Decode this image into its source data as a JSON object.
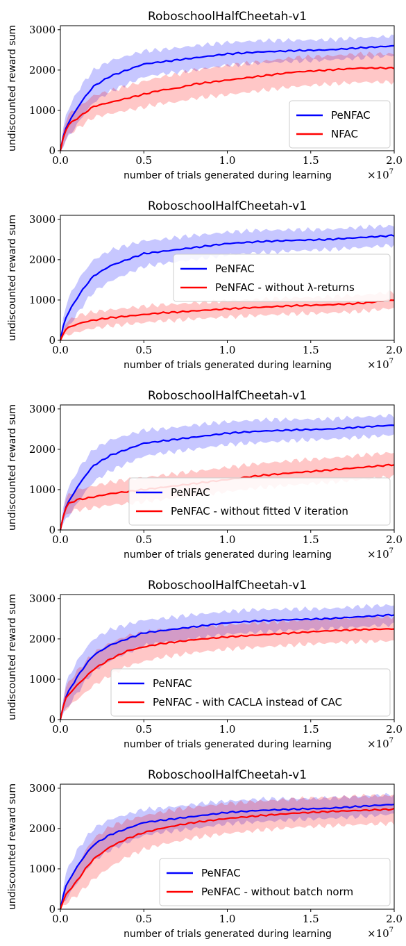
{
  "chart_data": [
    {
      "type": "line",
      "title": "RoboschoolHalfCheetah-v1",
      "xlabel": "number of trials generated during learning",
      "ylabel": "undiscounted reward sum",
      "x_multiplier": "×10",
      "x_multiplier_exp": "7",
      "xlim": [
        0,
        2.0
      ],
      "ylim": [
        0,
        3100
      ],
      "xticks": [
        "0.0",
        "0.5",
        "1.0",
        "1.5",
        "2.0"
      ],
      "yticks": [
        "0",
        "1000",
        "2000",
        "3000"
      ],
      "legend_position": "lower-right",
      "x": [
        0,
        0.025,
        0.05,
        0.1,
        0.15,
        0.2,
        0.3,
        0.4,
        0.5,
        0.6,
        0.7,
        0.8,
        1.0,
        1.2,
        1.4,
        1.6,
        1.8,
        2.0
      ],
      "series": [
        {
          "name": "PeNFAC",
          "color": "#0000ff",
          "values": [
            0,
            500,
            700,
            1050,
            1350,
            1600,
            1850,
            2000,
            2150,
            2200,
            2250,
            2300,
            2400,
            2450,
            2480,
            2500,
            2550,
            2600
          ],
          "band": [
            0,
            300,
            350,
            400,
            400,
            400,
            380,
            350,
            320,
            300,
            300,
            300,
            280,
            280,
            260,
            250,
            250,
            240
          ]
        },
        {
          "name": "NFAC",
          "color": "#ff0000",
          "values": [
            0,
            450,
            650,
            800,
            950,
            1100,
            1200,
            1300,
            1400,
            1500,
            1550,
            1650,
            1750,
            1850,
            1950,
            2000,
            2050,
            2050
          ],
          "band": [
            0,
            250,
            250,
            250,
            260,
            270,
            280,
            300,
            320,
            330,
            340,
            350,
            360,
            360,
            360,
            350,
            350,
            350
          ]
        }
      ]
    },
    {
      "type": "line",
      "title": "RoboschoolHalfCheetah-v1",
      "xlabel": "number of trials generated during learning",
      "ylabel": "undiscounted reward sum",
      "x_multiplier": "×10",
      "x_multiplier_exp": "7",
      "xlim": [
        0,
        2.0
      ],
      "ylim": [
        0,
        3100
      ],
      "xticks": [
        "0.0",
        "0.5",
        "1.0",
        "1.5",
        "2.0"
      ],
      "yticks": [
        "0",
        "1000",
        "2000",
        "3000"
      ],
      "legend_position": "center-right",
      "x": [
        0,
        0.025,
        0.05,
        0.1,
        0.15,
        0.2,
        0.3,
        0.4,
        0.5,
        0.6,
        0.7,
        0.8,
        1.0,
        1.2,
        1.4,
        1.6,
        1.8,
        2.0
      ],
      "series": [
        {
          "name": "PeNFAC",
          "color": "#0000ff",
          "values": [
            0,
            500,
            700,
            1050,
            1350,
            1600,
            1850,
            2000,
            2150,
            2200,
            2250,
            2300,
            2400,
            2450,
            2480,
            2500,
            2550,
            2600
          ],
          "band": [
            0,
            300,
            350,
            400,
            400,
            400,
            380,
            350,
            320,
            300,
            300,
            300,
            280,
            280,
            260,
            250,
            250,
            240
          ]
        },
        {
          "name": "PeNFAC - without λ-returns",
          "color": "#ff0000",
          "values": [
            0,
            250,
            320,
            400,
            460,
            500,
            560,
            600,
            640,
            680,
            700,
            730,
            780,
            820,
            860,
            880,
            920,
            1000
          ],
          "band": [
            0,
            150,
            170,
            200,
            200,
            200,
            200,
            200,
            200,
            200,
            200,
            200,
            200,
            200,
            200,
            200,
            200,
            200
          ]
        }
      ]
    },
    {
      "type": "line",
      "title": "RoboschoolHalfCheetah-v1",
      "xlabel": "number of trials generated during learning",
      "ylabel": "undiscounted reward sum",
      "x_multiplier": "×10",
      "x_multiplier_exp": "7",
      "xlim": [
        0,
        2.0
      ],
      "ylim": [
        0,
        3100
      ],
      "xticks": [
        "0.0",
        "0.5",
        "1.0",
        "1.5",
        "2.0"
      ],
      "yticks": [
        "0",
        "1000",
        "2000",
        "3000"
      ],
      "legend_position": "lower-right",
      "x": [
        0,
        0.025,
        0.05,
        0.1,
        0.15,
        0.2,
        0.3,
        0.4,
        0.5,
        0.6,
        0.7,
        0.8,
        1.0,
        1.2,
        1.4,
        1.6,
        1.8,
        2.0
      ],
      "series": [
        {
          "name": "PeNFAC",
          "color": "#0000ff",
          "values": [
            0,
            500,
            700,
            1050,
            1350,
            1600,
            1850,
            2000,
            2150,
            2200,
            2250,
            2300,
            2400,
            2450,
            2480,
            2500,
            2550,
            2600
          ],
          "band": [
            0,
            300,
            350,
            400,
            400,
            400,
            380,
            350,
            320,
            300,
            300,
            300,
            280,
            280,
            260,
            250,
            250,
            240
          ]
        },
        {
          "name": "PeNFAC - without fitted V iteration",
          "color": "#ff0000",
          "values": [
            0,
            500,
            650,
            750,
            780,
            820,
            900,
            950,
            1000,
            1050,
            1100,
            1150,
            1250,
            1350,
            1420,
            1480,
            1550,
            1620
          ],
          "band": [
            0,
            200,
            220,
            250,
            260,
            270,
            280,
            300,
            300,
            300,
            300,
            300,
            300,
            300,
            300,
            300,
            300,
            300
          ]
        }
      ]
    },
    {
      "type": "line",
      "title": "RoboschoolHalfCheetah-v1",
      "xlabel": "number of trials generated during learning",
      "ylabel": "undiscounted reward sum",
      "x_multiplier": "×10",
      "x_multiplier_exp": "7",
      "xlim": [
        0,
        2.0
      ],
      "ylim": [
        0,
        3100
      ],
      "xticks": [
        "0.0",
        "0.5",
        "1.0",
        "1.5",
        "2.0"
      ],
      "yticks": [
        "0",
        "1000",
        "2000",
        "3000"
      ],
      "legend_position": "lower-right",
      "x": [
        0,
        0.025,
        0.05,
        0.1,
        0.15,
        0.2,
        0.3,
        0.4,
        0.5,
        0.6,
        0.7,
        0.8,
        1.0,
        1.2,
        1.4,
        1.6,
        1.8,
        2.0
      ],
      "series": [
        {
          "name": "PeNFAC",
          "color": "#0000ff",
          "values": [
            0,
            500,
            700,
            1050,
            1350,
            1600,
            1850,
            2000,
            2150,
            2200,
            2250,
            2300,
            2400,
            2450,
            2480,
            2500,
            2550,
            2600
          ],
          "band": [
            0,
            300,
            350,
            400,
            400,
            400,
            380,
            350,
            320,
            300,
            300,
            300,
            280,
            280,
            260,
            250,
            250,
            240
          ]
        },
        {
          "name": "PeNFAC - with CACLA instead of CAC",
          "color": "#ff0000",
          "values": [
            0,
            480,
            620,
            850,
            1050,
            1250,
            1500,
            1700,
            1800,
            1880,
            1930,
            1980,
            2050,
            2100,
            2150,
            2200,
            2230,
            2250
          ],
          "band": [
            0,
            250,
            300,
            350,
            380,
            400,
            400,
            380,
            360,
            340,
            330,
            320,
            300,
            300,
            300,
            300,
            300,
            300
          ]
        }
      ]
    },
    {
      "type": "line",
      "title": "RoboschoolHalfCheetah-v1",
      "xlabel": "number of trials generated during learning",
      "ylabel": "undiscounted reward sum",
      "x_multiplier": "×10",
      "x_multiplier_exp": "7",
      "xlim": [
        0,
        2.0
      ],
      "ylim": [
        0,
        3100
      ],
      "xticks": [
        "0.0",
        "0.5",
        "1.0",
        "1.5",
        "2.0"
      ],
      "yticks": [
        "0",
        "1000",
        "2000",
        "3000"
      ],
      "legend_position": "lower-right",
      "x": [
        0,
        0.025,
        0.05,
        0.1,
        0.15,
        0.2,
        0.3,
        0.4,
        0.5,
        0.6,
        0.7,
        0.8,
        1.0,
        1.2,
        1.4,
        1.6,
        1.8,
        2.0
      ],
      "series": [
        {
          "name": "PeNFAC",
          "color": "#0000ff",
          "values": [
            0,
            500,
            700,
            1050,
            1350,
            1600,
            1850,
            2000,
            2150,
            2200,
            2250,
            2300,
            2400,
            2450,
            2480,
            2500,
            2550,
            2600
          ],
          "band": [
            0,
            300,
            350,
            400,
            400,
            400,
            380,
            350,
            320,
            300,
            300,
            300,
            280,
            280,
            260,
            250,
            250,
            240
          ]
        },
        {
          "name": "PeNFAC - without batch norm",
          "color": "#ff0000",
          "values": [
            0,
            300,
            450,
            700,
            1000,
            1250,
            1550,
            1750,
            1900,
            2000,
            2080,
            2150,
            2250,
            2320,
            2380,
            2420,
            2450,
            2480
          ],
          "band": [
            0,
            200,
            250,
            350,
            450,
            500,
            500,
            450,
            420,
            400,
            400,
            380,
            370,
            360,
            350,
            350,
            350,
            350
          ]
        }
      ]
    }
  ]
}
